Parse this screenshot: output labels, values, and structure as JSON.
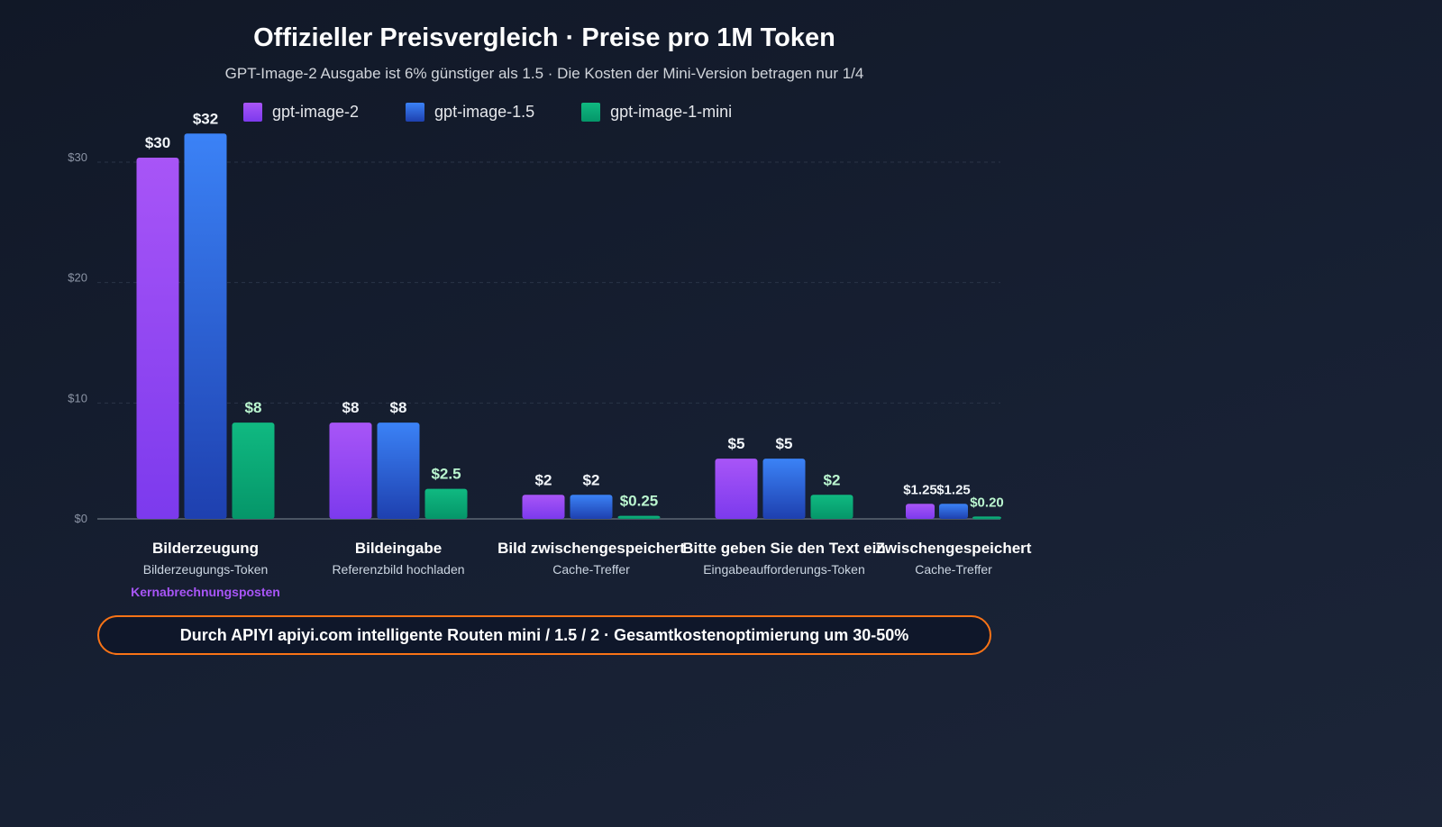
{
  "chart_data": {
    "type": "bar",
    "title": "Offizieller Preisvergleich · Preise pro 1M Token",
    "subtitle": "GPT-Image-2 Ausgabe ist 6% günstiger als 1.5 · Die Kosten der Mini-Version betragen nur 1/4",
    "categories": [
      {
        "label": "Bilderzeugung",
        "sublabel": "Bilderzeugungs-Token",
        "note": "Kernabrechnungsposten"
      },
      {
        "label": "Bildeingabe",
        "sublabel": "Referenzbild hochladen"
      },
      {
        "label": "Bild zwischengespeichert",
        "sublabel": "Cache-Treffer"
      },
      {
        "label": "Bitte geben Sie den Text ein",
        "sublabel": "Eingabeaufforderungs-Token"
      },
      {
        "label": "Zwischengespeichert",
        "sublabel": "Cache-Treffer"
      }
    ],
    "series": [
      {
        "name": "gpt-image-2",
        "color": "#a855f7",
        "color2": "#7c3aed",
        "values": [
          30,
          8,
          2,
          5,
          1.25
        ],
        "labels": [
          "$30",
          "$8",
          "$2",
          "$5",
          "$1.25"
        ]
      },
      {
        "name": "gpt-image-1.5",
        "color": "#3b82f6",
        "color2": "#1e40af",
        "values": [
          32,
          8,
          2,
          5,
          1.25
        ],
        "labels": [
          "$32",
          "$8",
          "$2",
          "$5",
          "$1.25"
        ]
      },
      {
        "name": "gpt-image-1-mini",
        "color": "#10b981",
        "color2": "#059669",
        "values": [
          8,
          2.5,
          0.25,
          2,
          0.2
        ],
        "labels": [
          "$8",
          "$2.5",
          "$0.25",
          "$2",
          "$0.20"
        ]
      }
    ],
    "yticks": [
      0,
      10,
      20,
      30
    ],
    "ytick_labels": [
      "$0",
      "$10",
      "$20",
      "$30"
    ],
    "ylim": [
      0,
      30
    ],
    "grid": true,
    "legend": "top",
    "note_color": "#a855f7"
  },
  "banner": "Durch APIYI apiyi.com intelligente Routen mini / 1.5 / 2 · Gesamtkostenoptimierung um 30-50%"
}
